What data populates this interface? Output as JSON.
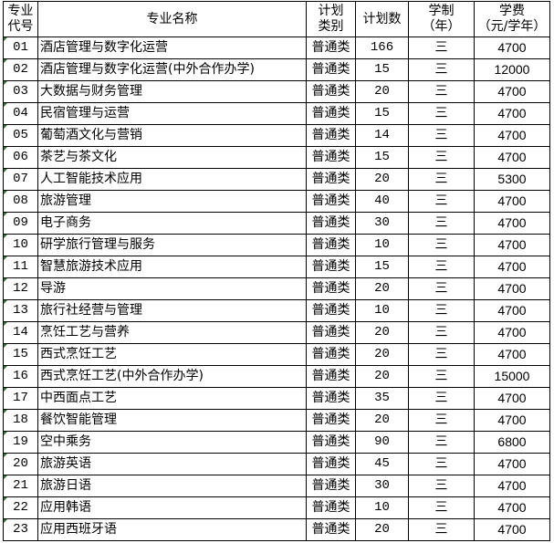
{
  "headers": {
    "code": [
      "专业",
      "代号"
    ],
    "name": "专业名称",
    "type": [
      "计划",
      "类别"
    ],
    "count": "计划数",
    "years": [
      "学制",
      "（年）"
    ],
    "fee": [
      "学费",
      "（元/学年）"
    ]
  },
  "rows": [
    {
      "code": "01",
      "name": "酒店管理与数字化运营",
      "type": "普通类",
      "count": "166",
      "years": "三",
      "fee": "4700"
    },
    {
      "code": "02",
      "name": "酒店管理与数字化运营(中外合作办学)",
      "type": "普通类",
      "count": "15",
      "years": "三",
      "fee": "12000"
    },
    {
      "code": "03",
      "name": "大数据与财务管理",
      "type": "普通类",
      "count": "20",
      "years": "三",
      "fee": "4700"
    },
    {
      "code": "04",
      "name": "民宿管理与运营",
      "type": "普通类",
      "count": "15",
      "years": "三",
      "fee": "4700"
    },
    {
      "code": "05",
      "name": "葡萄酒文化与营销",
      "type": "普通类",
      "count": "14",
      "years": "三",
      "fee": "4700"
    },
    {
      "code": "06",
      "name": "茶艺与茶文化",
      "type": "普通类",
      "count": "15",
      "years": "三",
      "fee": "4700"
    },
    {
      "code": "07",
      "name": "人工智能技术应用",
      "type": "普通类",
      "count": "20",
      "years": "三",
      "fee": "5300"
    },
    {
      "code": "08",
      "name": "旅游管理",
      "type": "普通类",
      "count": "40",
      "years": "三",
      "fee": "4700"
    },
    {
      "code": "09",
      "name": "电子商务",
      "type": "普通类",
      "count": "30",
      "years": "三",
      "fee": "4700"
    },
    {
      "code": "10",
      "name": "研学旅行管理与服务",
      "type": "普通类",
      "count": "10",
      "years": "三",
      "fee": "4700"
    },
    {
      "code": "11",
      "name": "智慧旅游技术应用",
      "type": "普通类",
      "count": "15",
      "years": "三",
      "fee": "4700"
    },
    {
      "code": "12",
      "name": "导游",
      "type": "普通类",
      "count": "20",
      "years": "三",
      "fee": "4700"
    },
    {
      "code": "13",
      "name": "旅行社经营与管理",
      "type": "普通类",
      "count": "10",
      "years": "三",
      "fee": "4700"
    },
    {
      "code": "14",
      "name": "烹饪工艺与营养",
      "type": "普通类",
      "count": "20",
      "years": "三",
      "fee": "4700"
    },
    {
      "code": "15",
      "name": "西式烹饪工艺",
      "type": "普通类",
      "count": "20",
      "years": "三",
      "fee": "4700"
    },
    {
      "code": "16",
      "name": "西式烹饪工艺(中外合作办学)",
      "type": "普通类",
      "count": "20",
      "years": "三",
      "fee": "15000"
    },
    {
      "code": "17",
      "name": "中西面点工艺",
      "type": "普通类",
      "count": "35",
      "years": "三",
      "fee": "4700"
    },
    {
      "code": "18",
      "name": "餐饮智能管理",
      "type": "普通类",
      "count": "20",
      "years": "三",
      "fee": "4700"
    },
    {
      "code": "19",
      "name": "空中乘务",
      "type": "普通类",
      "count": "90",
      "years": "三",
      "fee": "6800"
    },
    {
      "code": "20",
      "name": "旅游英语",
      "type": "普通类",
      "count": "45",
      "years": "三",
      "fee": "4700"
    },
    {
      "code": "21",
      "name": "旅游日语",
      "type": "普通类",
      "count": "30",
      "years": "三",
      "fee": "4700"
    },
    {
      "code": "22",
      "name": "应用韩语",
      "type": "普通类",
      "count": "10",
      "years": "三",
      "fee": "4700"
    },
    {
      "code": "23",
      "name": "应用西班牙语",
      "type": "普通类",
      "count": "20",
      "years": "三",
      "fee": "4700"
    }
  ],
  "colors": {
    "border": "#000000",
    "cell_marker": "#1e7a1e"
  }
}
